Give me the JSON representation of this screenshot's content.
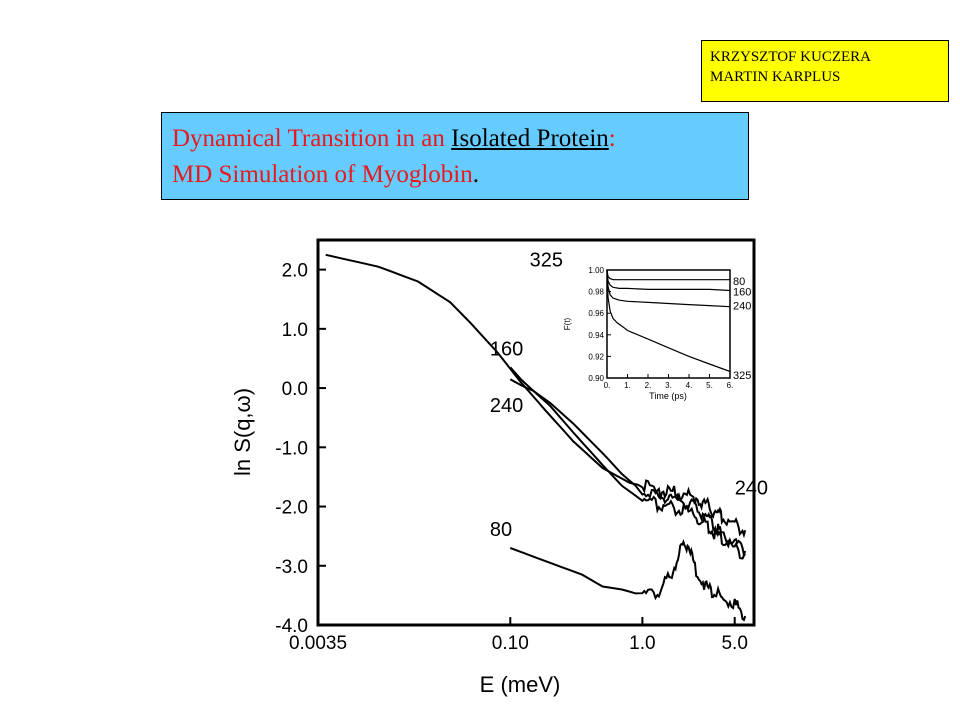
{
  "authors": [
    "KRZYSZTOF KUCZERA",
    "MARTIN KARPLUS"
  ],
  "title": {
    "line1_prefix": "Dynamical Transition in an ",
    "line1_emph": "Isolated Protein",
    "line1_suffix": ":",
    "line2_text": "MD Simulation of Myoglobin",
    "line2_end": "."
  },
  "chart_data": [
    {
      "type": "line",
      "xlabel": "E (meV)",
      "ylabel": "ln S(q,ω)",
      "x_scale": "log",
      "xlim": [
        0.0035,
        7.0
      ],
      "ylim": [
        -4.0,
        2.5
      ],
      "xticks": [
        0.0035,
        0.1,
        1.0,
        5.0
      ],
      "xtick_labels": [
        "0.0035",
        "0.10",
        "1.0",
        "5.0"
      ],
      "yticks": [
        2.0,
        1.0,
        0.0,
        -1.0,
        -2.0,
        -3.0,
        -4.0
      ],
      "ytick_labels": [
        "2.0",
        "1.0",
        "0.0",
        "-1.0",
        "-2.0",
        "-3.0",
        "-4.0"
      ],
      "series": [
        {
          "name": "325",
          "x": [
            0.004,
            0.01,
            0.02,
            0.035,
            0.05,
            0.08,
            0.12,
            0.18,
            0.3,
            0.5,
            0.8,
            1.0,
            1.3,
            1.6,
            2.0,
            2.5,
            3.0,
            3.5,
            4.0,
            5.0,
            6.0
          ],
          "y": [
            2.25,
            2.05,
            1.8,
            1.45,
            1.1,
            0.6,
            0.1,
            -0.35,
            -0.9,
            -1.35,
            -1.6,
            -1.65,
            -1.75,
            -1.75,
            -1.8,
            -1.85,
            -1.95,
            -2.1,
            -2.15,
            -2.3,
            -2.4
          ]
        },
        {
          "name": "160",
          "x": [
            0.1,
            0.12,
            0.15,
            0.2,
            0.3,
            0.5,
            0.7,
            1.0,
            1.3,
            1.6,
            2.0,
            2.5,
            3.0,
            3.5,
            4.0,
            5.0,
            6.0
          ],
          "y": [
            0.35,
            0.15,
            -0.05,
            -0.3,
            -0.75,
            -1.3,
            -1.65,
            -1.9,
            -1.95,
            -2.0,
            -2.05,
            -2.15,
            -2.3,
            -2.45,
            -2.55,
            -2.7,
            -2.8
          ]
        },
        {
          "name": "240",
          "x": [
            0.1,
            0.12,
            0.15,
            0.2,
            0.3,
            0.5,
            0.7,
            1.0,
            1.3,
            1.6,
            2.0,
            2.5,
            3.0,
            3.5,
            4.0,
            5.0,
            6.0
          ],
          "y": [
            0.15,
            0.05,
            -0.05,
            -0.25,
            -0.6,
            -1.1,
            -1.45,
            -1.75,
            -1.8,
            -1.85,
            -1.9,
            -2.0,
            -2.15,
            -2.3,
            -2.45,
            -2.6,
            -2.75
          ]
        },
        {
          "name": "80",
          "x": [
            0.1,
            0.2,
            0.35,
            0.5,
            0.7,
            1.0,
            1.3,
            1.6,
            1.9,
            2.2,
            2.5,
            3.0,
            3.5,
            4.0,
            5.0,
            6.0
          ],
          "y": [
            -2.7,
            -2.95,
            -3.15,
            -3.35,
            -3.4,
            -3.5,
            -3.45,
            -3.2,
            -2.8,
            -2.6,
            -3.05,
            -3.35,
            -3.45,
            -3.55,
            -3.65,
            -3.85
          ]
        }
      ],
      "curve_labels": [
        {
          "text": "325",
          "x": 0.14,
          "y": 2.05
        },
        {
          "text": "160",
          "x": 0.07,
          "y": 0.55
        },
        {
          "text": "240",
          "x": 0.07,
          "y": -0.4
        },
        {
          "text": "240",
          "x": 5.0,
          "y": -1.8
        },
        {
          "text": "80",
          "x": 0.07,
          "y": -2.5
        }
      ]
    },
    {
      "type": "line",
      "xlabel": "Time (ps)",
      "ylabel": "F(t)",
      "xlim": [
        0.0,
        6.0
      ],
      "ylim": [
        0.9,
        1.0
      ],
      "xticks": [
        0,
        1,
        2,
        3,
        4,
        5,
        6
      ],
      "xtick_labels": [
        "0.",
        "1.",
        "2.",
        "3.",
        "4.",
        "5.",
        "6."
      ],
      "yticks": [
        1.0,
        0.98,
        0.96,
        0.94,
        0.92,
        0.9
      ],
      "ytick_labels": [
        "1.00",
        "0.98",
        "0.96",
        "0.94",
        "0.92",
        "0.90"
      ],
      "series": [
        {
          "name": "80",
          "x": [
            0,
            0.05,
            0.15,
            0.3,
            0.6,
            1.0,
            2.0,
            3.0,
            4.0,
            5.0,
            6.0
          ],
          "y": [
            1.0,
            0.994,
            0.992,
            0.991,
            0.991,
            0.991,
            0.991,
            0.991,
            0.991,
            0.991,
            0.991
          ]
        },
        {
          "name": "160",
          "x": [
            0,
            0.05,
            0.15,
            0.3,
            0.6,
            1.0,
            2.0,
            3.0,
            4.0,
            5.0,
            6.0
          ],
          "y": [
            1.0,
            0.99,
            0.986,
            0.984,
            0.983,
            0.983,
            0.982,
            0.982,
            0.982,
            0.982,
            0.981
          ]
        },
        {
          "name": "240",
          "x": [
            0,
            0.05,
            0.15,
            0.3,
            0.6,
            1.0,
            2.0,
            3.0,
            4.0,
            5.0,
            6.0
          ],
          "y": [
            1.0,
            0.985,
            0.977,
            0.974,
            0.972,
            0.971,
            0.97,
            0.969,
            0.968,
            0.967,
            0.966
          ]
        },
        {
          "name": "325",
          "x": [
            0,
            0.05,
            0.15,
            0.3,
            0.5,
            0.8,
            1.0,
            2.0,
            3.0,
            4.0,
            5.0,
            6.0
          ],
          "y": [
            1.0,
            0.975,
            0.962,
            0.955,
            0.951,
            0.947,
            0.944,
            0.936,
            0.928,
            0.92,
            0.913,
            0.906
          ]
        }
      ]
    }
  ]
}
